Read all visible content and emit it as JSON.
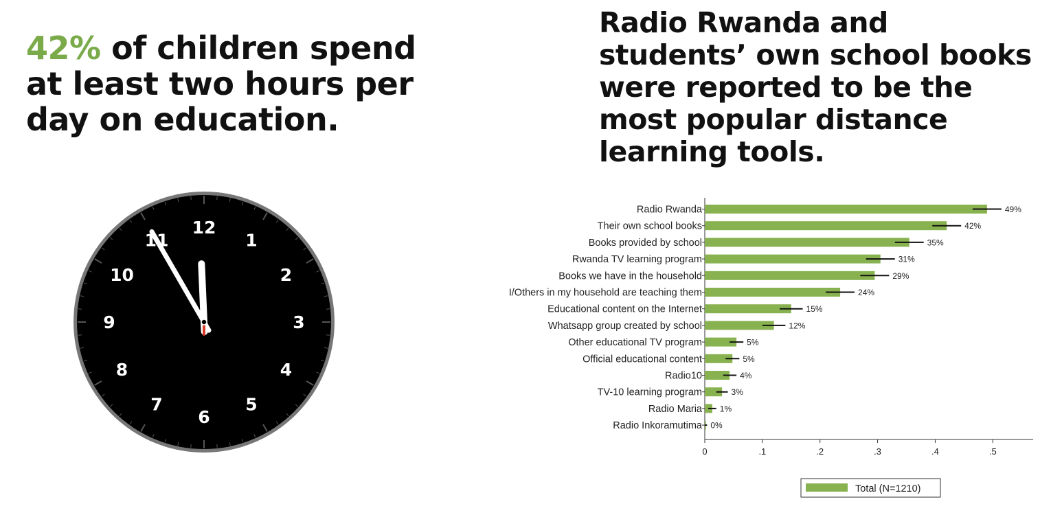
{
  "left_headline": {
    "highlight": "42%",
    "text": " of children spend at least two hours per day on education."
  },
  "right_headline": "Radio Rwanda and students’ own school books were reported to be the most popular distance learning tools.",
  "clock": {
    "numbers": [
      "12",
      "1",
      "2",
      "3",
      "4",
      "5",
      "6",
      "7",
      "8",
      "9",
      "10",
      "11"
    ],
    "time": {
      "hour": 11,
      "minute": 55
    },
    "colors": {
      "face": "#000000",
      "rim": "#777777",
      "hands": "#ffffff",
      "center": "#d83a2a"
    }
  },
  "chart_data": {
    "type": "bar",
    "orientation": "horizontal",
    "categories": [
      "Radio Rwanda",
      "Their own school books",
      "Books provided by school",
      "Rwanda TV learning program",
      "Books we have in the household",
      "I/Others in my household are teaching them",
      "Educational content on the Internet",
      "Whatsapp group created by school",
      "Other educational TV program",
      "Official educational content",
      "Radio10",
      "TV-10 learning program",
      "Radio Maria",
      "Radio Inkoramutima"
    ],
    "series": [
      {
        "name": "Total (N=1210)",
        "values": [
          0.49,
          0.42,
          0.355,
          0.305,
          0.295,
          0.235,
          0.15,
          0.12,
          0.055,
          0.048,
          0.043,
          0.03,
          0.013,
          0.002
        ],
        "error_low": [
          0.465,
          0.395,
          0.33,
          0.28,
          0.27,
          0.21,
          0.13,
          0.1,
          0.043,
          0.036,
          0.032,
          0.02,
          0.006,
          0.0
        ],
        "error_high": [
          0.515,
          0.445,
          0.38,
          0.33,
          0.32,
          0.26,
          0.17,
          0.14,
          0.067,
          0.06,
          0.055,
          0.04,
          0.02,
          0.004
        ],
        "color": "#88b24f"
      }
    ],
    "data_labels": [
      "49%",
      "42%",
      "35%",
      "31%",
      "29%",
      "24%",
      "15%",
      "12%",
      "5%",
      "5%",
      "4%",
      "3%",
      "1%",
      "0%"
    ],
    "x_ticks": [
      0,
      0.1,
      0.2,
      0.3,
      0.4,
      0.5
    ],
    "x_tick_labels": [
      "0",
      ".1",
      ".2",
      ".3",
      ".4",
      ".5"
    ],
    "xlim": [
      0,
      0.57
    ],
    "grid": false,
    "legend_position": "bottom",
    "title": "",
    "xlabel": "",
    "ylabel": ""
  }
}
